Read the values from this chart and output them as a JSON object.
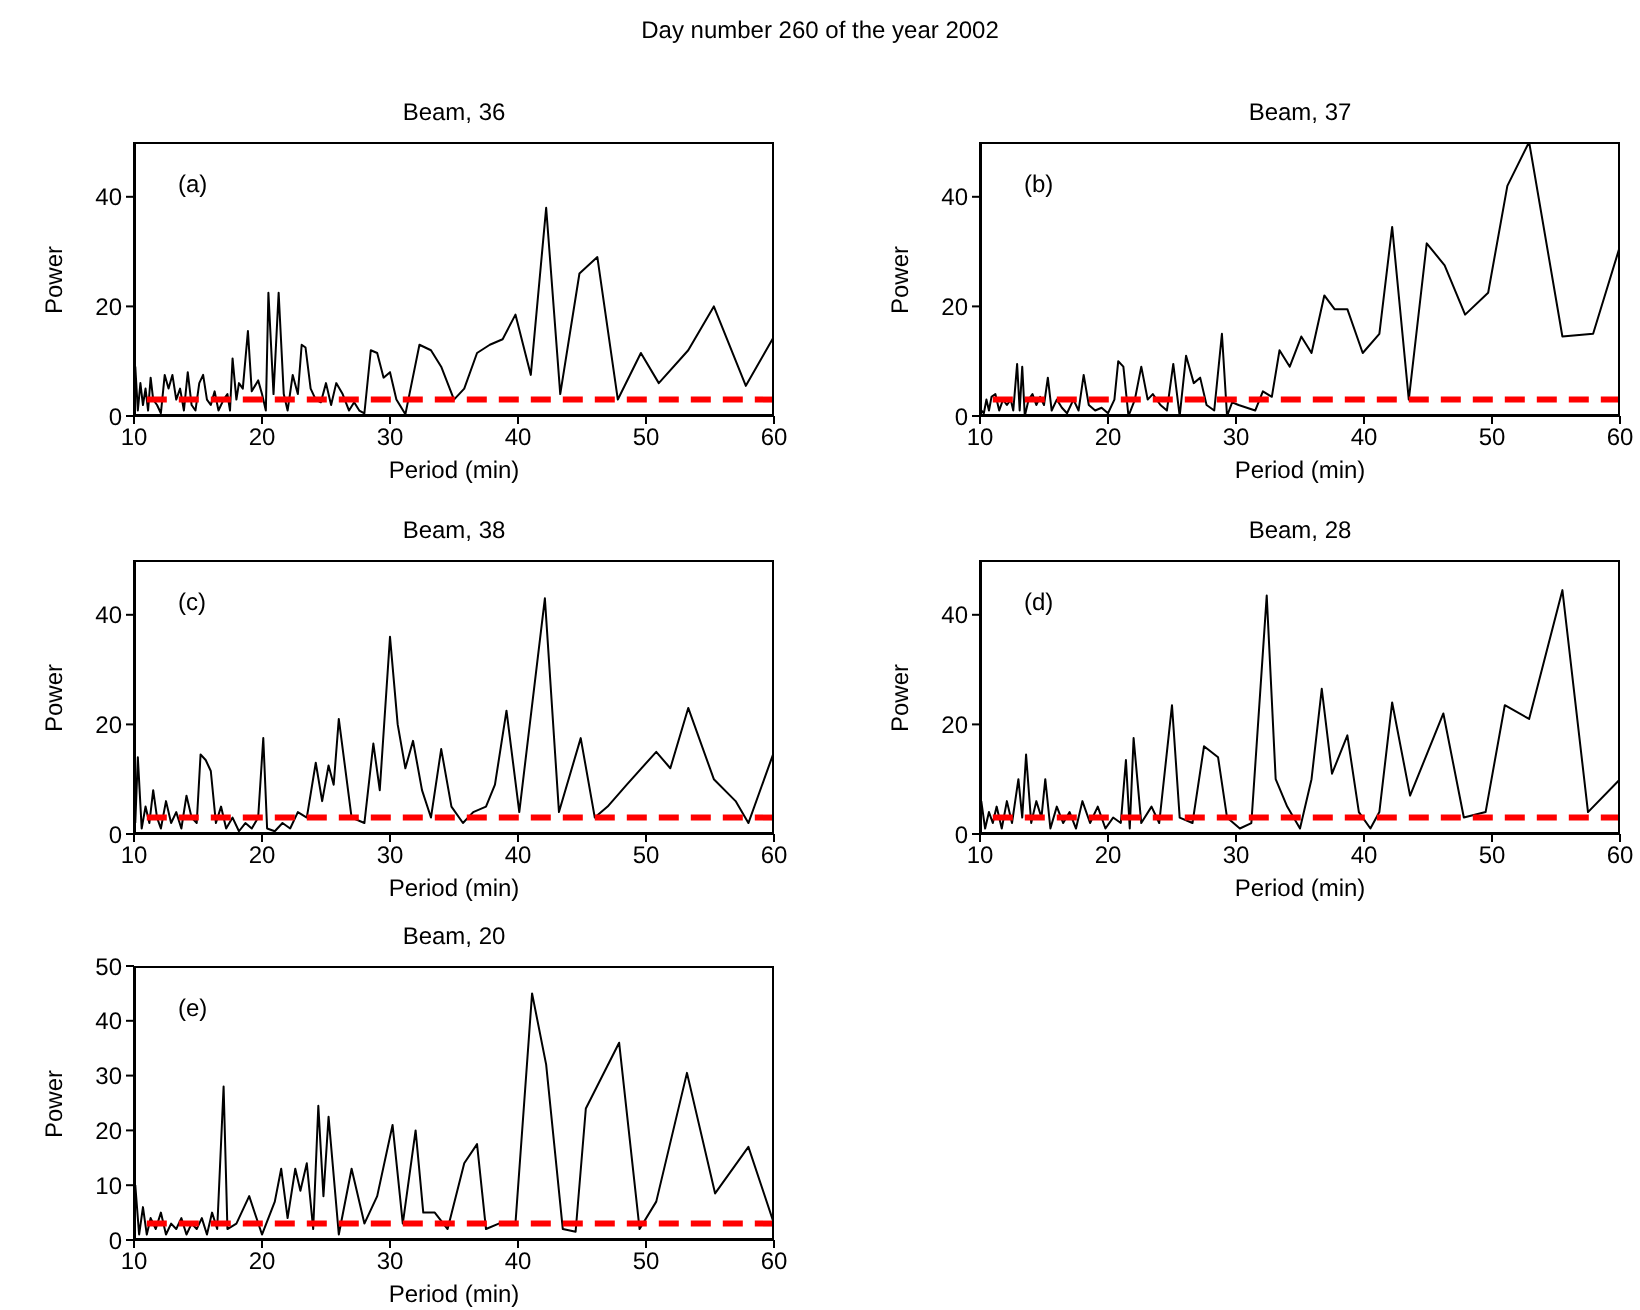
{
  "chart_data": [
    {
      "type": "line",
      "title": "Beam, 36",
      "xlabel": "Period (min)",
      "ylabel": "Power",
      "xlim": [
        10,
        60
      ],
      "xticks": [
        10,
        20,
        30,
        40,
        50,
        60
      ],
      "ylim": [
        0,
        50
      ],
      "yticks": [
        0,
        20,
        40
      ],
      "annotations": [
        "(a)",
        "Day number 260 of the year 2002"
      ],
      "series": [
        {
          "color": "#000000",
          "x": [
            10.1,
            10.3,
            10.5,
            10.7,
            10.9,
            11.1,
            11.3,
            11.5,
            11.8,
            12.1,
            12.4,
            12.7,
            13,
            13.3,
            13.6,
            13.9,
            14.2,
            14.5,
            14.8,
            15.1,
            15.4,
            15.7,
            16,
            16.3,
            16.6,
            17,
            17.3,
            17.5,
            17.7,
            18,
            18.2,
            18.5,
            18.9,
            19.2,
            19.7,
            20,
            20.3,
            20.5,
            20.9,
            21.3,
            21.7,
            22,
            22.4,
            22.8,
            23.1,
            23.4,
            23.8,
            24.2,
            24.6,
            25,
            25.4,
            25.8,
            26.3,
            26.8,
            27.2,
            27.6,
            28,
            28.5,
            29,
            29.5,
            30,
            30.5,
            31.2,
            32.3,
            33.2,
            34,
            35,
            35.8,
            36.8,
            37.8,
            38.8,
            39.8,
            41,
            42.2,
            43.3,
            44.8,
            46.2,
            47.8,
            49.6,
            51,
            53.3,
            55.3,
            57.8,
            60
          ],
          "values": [
            9,
            1,
            6,
            2,
            5,
            1,
            7,
            3,
            2,
            0.5,
            7.5,
            5,
            7.5,
            3,
            5,
            1,
            8,
            2,
            1,
            6,
            7.5,
            3,
            2,
            4.5,
            1,
            3,
            4,
            1,
            10.5,
            3,
            6,
            5,
            15.5,
            4.5,
            6.5,
            4,
            1,
            22.5,
            4,
            22.5,
            4,
            1,
            7.5,
            4,
            13,
            12.5,
            5,
            3,
            2.5,
            6,
            2,
            6,
            4,
            1,
            2.5,
            1,
            0.5,
            12,
            11.5,
            7,
            8,
            3,
            0.3,
            13,
            12,
            9,
            3,
            5,
            11.5,
            13,
            14,
            18.5,
            7.5,
            38,
            4,
            26,
            29,
            3,
            11.5,
            6,
            12,
            20,
            5.5,
            14.5
          ]
        },
        {
          "color": "#ff0000",
          "line_style": "dashed",
          "x": [
            11,
            60
          ],
          "values": [
            3,
            3
          ]
        }
      ]
    },
    {
      "type": "line",
      "title": "Beam, 37",
      "xlabel": "Period (min)",
      "ylabel": "Power",
      "xlim": [
        10,
        60
      ],
      "xticks": [
        10,
        20,
        30,
        40,
        50,
        60
      ],
      "ylim": [
        0,
        50
      ],
      "yticks": [
        0,
        20,
        40
      ],
      "annotations": [
        "(b)"
      ],
      "series": [
        {
          "color": "#000000",
          "x": [
            10.1,
            10.3,
            10.5,
            10.7,
            10.9,
            11.2,
            11.5,
            11.8,
            12.1,
            12.4,
            12.6,
            12.9,
            13.1,
            13.3,
            13.5,
            13.8,
            14.1,
            14.4,
            14.7,
            15,
            15.3,
            15.6,
            16,
            16.4,
            16.8,
            17.3,
            17.7,
            18.1,
            18.5,
            19,
            19.5,
            20,
            20.5,
            20.8,
            21.2,
            21.6,
            22.1,
            22.6,
            23.1,
            23.5,
            24.1,
            24.6,
            25.1,
            25.6,
            26.1,
            26.7,
            27.2,
            27.7,
            28.3,
            28.9,
            29.3,
            29.7,
            30.2,
            31.5,
            32.1,
            32.8,
            33.4,
            34.2,
            35.1,
            35.9,
            36.9,
            37.7,
            38.7,
            39.9,
            41.2,
            42.2,
            43.5,
            44.9,
            46.3,
            47.9,
            49.7,
            51.2,
            52.9,
            55.5,
            57.9,
            60
          ],
          "values": [
            1,
            0.5,
            3,
            1,
            3.5,
            4,
            1,
            3,
            2,
            3,
            1,
            9.5,
            1,
            9,
            0,
            3,
            4,
            2,
            3.5,
            2,
            7,
            1,
            3,
            1.5,
            0.5,
            3,
            1,
            7.5,
            2,
            1,
            1.5,
            0.5,
            3,
            10,
            9,
            0,
            3,
            9,
            3,
            4,
            2,
            1,
            9.5,
            0,
            11,
            6,
            7,
            2,
            1,
            15,
            0,
            2.5,
            2,
            1,
            4.5,
            3.5,
            12,
            9,
            14.5,
            11.5,
            22,
            19.5,
            19.5,
            11.5,
            15,
            34.5,
            3,
            31.5,
            27.5,
            18.5,
            22.5,
            42,
            50,
            14.5,
            15,
            31
          ]
        },
        {
          "color": "#ff0000",
          "line_style": "dashed",
          "x": [
            11,
            60
          ],
          "values": [
            3,
            3
          ]
        }
      ]
    },
    {
      "type": "line",
      "title": "Beam, 38",
      "xlabel": "Period (min)",
      "ylabel": "Power",
      "xlim": [
        10,
        60
      ],
      "xticks": [
        10,
        20,
        30,
        40,
        50,
        60
      ],
      "ylim": [
        0,
        50
      ],
      "yticks": [
        0,
        20,
        40
      ],
      "annotations": [
        "(c)"
      ],
      "series": [
        {
          "color": "#000000",
          "x": [
            10.1,
            10.3,
            10.6,
            10.9,
            11.2,
            11.5,
            11.8,
            12.1,
            12.5,
            12.9,
            13.3,
            13.7,
            14.1,
            14.5,
            14.9,
            15.2,
            15.6,
            16,
            16.4,
            16.8,
            17.2,
            17.7,
            18.2,
            18.7,
            19.2,
            19.7,
            20.1,
            20.4,
            21,
            21.6,
            22.2,
            22.8,
            23.5,
            24.2,
            24.7,
            25.2,
            25.6,
            26,
            27,
            28,
            28.7,
            29.2,
            30,
            30.6,
            31.2,
            31.8,
            32.5,
            33.2,
            34,
            34.8,
            35.7,
            36.5,
            37.5,
            38.2,
            39.1,
            40.1,
            42.1,
            43.2,
            44.9,
            46,
            47,
            48.5,
            50.8,
            51.9,
            53.3,
            55.3,
            57,
            58,
            60
          ],
          "values": [
            2,
            14,
            1,
            5,
            2,
            8,
            3,
            1,
            6,
            2,
            4,
            1,
            7,
            3,
            2,
            14.5,
            13.5,
            11.5,
            2,
            5,
            1,
            3,
            0.5,
            2,
            1,
            3,
            17.5,
            1,
            0.5,
            2,
            1,
            4,
            3,
            13,
            6,
            12.5,
            9,
            21,
            3,
            2,
            16.5,
            8,
            36,
            20,
            12,
            17,
            8,
            3,
            15.5,
            5,
            2,
            4,
            5,
            9,
            22.5,
            4,
            43,
            4,
            17.5,
            3,
            5,
            9,
            15,
            12,
            23,
            10,
            6,
            2,
            15
          ]
        },
        {
          "color": "#ff0000",
          "line_style": "dashed",
          "x": [
            11,
            60
          ],
          "values": [
            3,
            3
          ]
        }
      ]
    },
    {
      "type": "line",
      "title": "Beam, 28",
      "xlabel": "Period (min)",
      "ylabel": "Power",
      "xlim": [
        10,
        60
      ],
      "xticks": [
        10,
        20,
        30,
        40,
        50,
        60
      ],
      "ylim": [
        0,
        50
      ],
      "yticks": [
        0,
        20,
        40
      ],
      "annotations": [
        "(d)"
      ],
      "series": [
        {
          "color": "#000000",
          "x": [
            10.1,
            10.4,
            10.7,
            11,
            11.3,
            11.7,
            12.1,
            12.5,
            13,
            13.3,
            13.6,
            14,
            14.4,
            14.8,
            15.1,
            15.5,
            16,
            16.5,
            17,
            17.5,
            18,
            18.6,
            19.2,
            19.8,
            20.4,
            21,
            21.4,
            21.7,
            22,
            22.6,
            23.4,
            24,
            25,
            25.6,
            26.6,
            27.5,
            28.6,
            29.3,
            30.3,
            31.2,
            32.4,
            33.1,
            34,
            35,
            35.9,
            36.7,
            37.5,
            38.7,
            39.6,
            40.5,
            41.2,
            42.2,
            43.6,
            46.2,
            47.8,
            49.5,
            51,
            52.9,
            55.5,
            57.5,
            60
          ],
          "values": [
            6,
            1,
            4,
            2,
            5,
            1,
            6,
            2,
            10,
            3,
            14.5,
            2,
            6,
            3,
            10,
            1,
            5,
            2,
            4,
            1,
            6,
            2,
            5,
            1,
            3,
            2,
            13.5,
            1,
            17.5,
            2,
            5,
            2,
            23.5,
            3,
            2,
            16,
            14,
            3,
            1,
            2,
            43.5,
            10,
            5,
            1,
            10,
            26.5,
            11,
            18,
            4,
            1,
            4,
            24,
            7,
            22,
            3,
            4,
            23.5,
            21,
            44.5,
            4,
            10
          ]
        },
        {
          "color": "#ff0000",
          "line_style": "dashed",
          "x": [
            11,
            60
          ],
          "values": [
            3,
            3
          ]
        }
      ]
    },
    {
      "type": "line",
      "title": "Beam, 20",
      "xlabel": "Period (min)",
      "ylabel": "Power",
      "xlim": [
        10,
        60
      ],
      "xticks": [
        10,
        20,
        30,
        40,
        50,
        60
      ],
      "ylim": [
        0,
        50
      ],
      "yticks": [
        0,
        10,
        20,
        30,
        40,
        50
      ],
      "annotations": [
        "(e)"
      ],
      "series": [
        {
          "color": "#000000",
          "x": [
            10.1,
            10.4,
            10.7,
            11,
            11.3,
            11.7,
            12.1,
            12.5,
            12.9,
            13.3,
            13.7,
            14.1,
            14.5,
            14.9,
            15.3,
            15.7,
            16.1,
            16.5,
            17,
            17.3,
            18,
            19,
            20,
            21,
            21.5,
            22,
            22.6,
            23,
            23.5,
            24,
            24.4,
            24.8,
            25.2,
            26,
            27,
            28,
            29,
            30.2,
            31,
            32,
            32.6,
            33.5,
            34.5,
            35.8,
            36.8,
            37.5,
            38.5,
            39.8,
            41.1,
            42.2,
            43.5,
            44.5,
            45.3,
            47.9,
            49.5,
            50.8,
            53.2,
            55.4,
            58,
            60
          ],
          "values": [
            10,
            1,
            6,
            1,
            4,
            2,
            5,
            1,
            3,
            2,
            4,
            1,
            3,
            2,
            4,
            1,
            5,
            2,
            28,
            2,
            3,
            8,
            1,
            7,
            13,
            4,
            13,
            9,
            14,
            2,
            24.5,
            8,
            22.5,
            1,
            13,
            3,
            8,
            21,
            3,
            20,
            5,
            5,
            2,
            14,
            17.5,
            2,
            3,
            3,
            45,
            32,
            2,
            1.5,
            24,
            36,
            2,
            7,
            30.5,
            8.5,
            17,
            3
          ]
        },
        {
          "color": "#ff0000",
          "line_style": "dashed",
          "x": [
            11,
            60
          ],
          "values": [
            3,
            3
          ]
        }
      ]
    }
  ]
}
